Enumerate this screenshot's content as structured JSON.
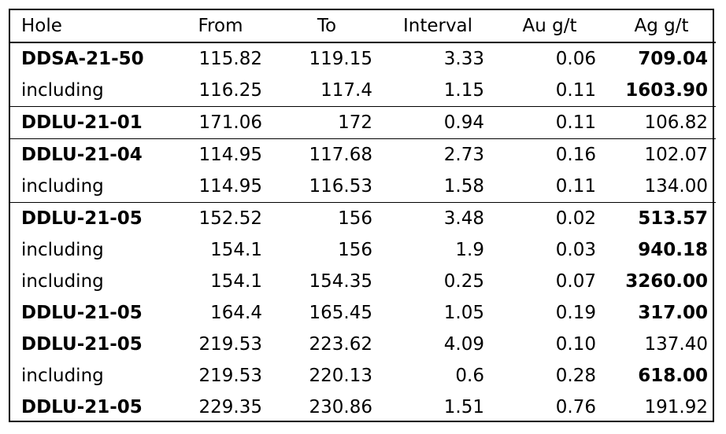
{
  "table": {
    "headers": [
      "Hole",
      "From",
      "To",
      "Interval",
      "Au g/t",
      "Ag g/t"
    ],
    "rows": [
      {
        "hole": "DDSA-21-50",
        "from": "115.82",
        "to": "119.15",
        "interval": "3.33",
        "au": "0.06",
        "ag": "709.04",
        "hole_bold": true,
        "ag_bold": true,
        "group_start": false
      },
      {
        "hole": "including",
        "from": "116.25",
        "to": "117.4",
        "interval": "1.15",
        "au": "0.11",
        "ag": "1603.90",
        "hole_bold": false,
        "ag_bold": true,
        "group_start": false
      },
      {
        "hole": "DDLU-21-01",
        "from": "171.06",
        "to": "172",
        "interval": "0.94",
        "au": "0.11",
        "ag": "106.82",
        "hole_bold": true,
        "ag_bold": false,
        "group_start": true
      },
      {
        "hole": "DDLU-21-04",
        "from": "114.95",
        "to": "117.68",
        "interval": "2.73",
        "au": "0.16",
        "ag": "102.07",
        "hole_bold": true,
        "ag_bold": false,
        "group_start": true
      },
      {
        "hole": "including",
        "from": "114.95",
        "to": "116.53",
        "interval": "1.58",
        "au": "0.11",
        "ag": "134.00",
        "hole_bold": false,
        "ag_bold": false,
        "group_start": false
      },
      {
        "hole": "DDLU-21-05",
        "from": "152.52",
        "to": "156",
        "interval": "3.48",
        "au": "0.02",
        "ag": "513.57",
        "hole_bold": true,
        "ag_bold": true,
        "group_start": true
      },
      {
        "hole": "including",
        "from": "154.1",
        "to": "156",
        "interval": "1.9",
        "au": "0.03",
        "ag": "940.18",
        "hole_bold": false,
        "ag_bold": true,
        "group_start": false
      },
      {
        "hole": "including",
        "from": "154.1",
        "to": "154.35",
        "interval": "0.25",
        "au": "0.07",
        "ag": "3260.00",
        "hole_bold": false,
        "ag_bold": true,
        "group_start": false
      },
      {
        "hole": "DDLU-21-05",
        "from": "164.4",
        "to": "165.45",
        "interval": "1.05",
        "au": "0.19",
        "ag": "317.00",
        "hole_bold": true,
        "ag_bold": true,
        "group_start": false
      },
      {
        "hole": "DDLU-21-05",
        "from": "219.53",
        "to": "223.62",
        "interval": "4.09",
        "au": "0.10",
        "ag": "137.40",
        "hole_bold": true,
        "ag_bold": false,
        "group_start": false
      },
      {
        "hole": "including",
        "from": "219.53",
        "to": "220.13",
        "interval": "0.6",
        "au": "0.28",
        "ag": "618.00",
        "hole_bold": false,
        "ag_bold": true,
        "group_start": false
      },
      {
        "hole": "DDLU-21-05",
        "from": "229.35",
        "to": "230.86",
        "interval": "1.51",
        "au": "0.76",
        "ag": "191.92",
        "hole_bold": true,
        "ag_bold": false,
        "group_start": false
      }
    ]
  }
}
